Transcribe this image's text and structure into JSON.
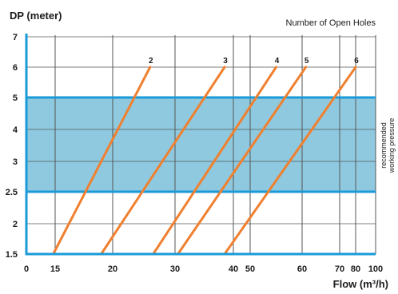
{
  "chart_data": {
    "type": "line",
    "y_title": "DP (meter)",
    "x_title": "Flow (m³/h)",
    "legend_title": "Number of Open Holes",
    "band_label_line1": "recommended",
    "band_label_line2": "working pressure",
    "y_ticks": [
      {
        "value": 1.5,
        "label": "1.5"
      },
      {
        "value": 2,
        "label": "2"
      },
      {
        "value": 2.5,
        "label": "2.5"
      },
      {
        "value": 3,
        "label": "3"
      },
      {
        "value": 4,
        "label": "4"
      },
      {
        "value": 5,
        "label": "5"
      },
      {
        "value": 6,
        "label": "6"
      },
      {
        "value": 7,
        "label": "7"
      }
    ],
    "x_ticks": [
      {
        "value": 0,
        "label": "0"
      },
      {
        "value": 15,
        "label": "15"
      },
      {
        "value": 20,
        "label": "20"
      },
      {
        "value": 30,
        "label": "30"
      },
      {
        "value": 40,
        "label": "40"
      },
      {
        "value": 50,
        "label": "50"
      },
      {
        "value": 60,
        "label": "60"
      },
      {
        "value": 70,
        "label": "70"
      },
      {
        "value": 80,
        "label": "80"
      },
      {
        "value": 100,
        "label": "100"
      }
    ],
    "band": {
      "y_from": 2.5,
      "y_to": 5,
      "color": "#8ec9df",
      "edge_color": "#1a9ad8"
    },
    "axis_color": "#1a9ad8",
    "grid_color": "#555555",
    "line_color": "#f08030",
    "series": [
      {
        "name": "2",
        "points": [
          {
            "flow": 14,
            "dp": 1.5
          },
          {
            "flow": 26,
            "dp": 6
          }
        ]
      },
      {
        "name": "3",
        "points": [
          {
            "flow": 19,
            "dp": 1.5
          },
          {
            "flow": 38.5,
            "dp": 6
          }
        ]
      },
      {
        "name": "4",
        "points": [
          {
            "flow": 26.5,
            "dp": 1.5
          },
          {
            "flow": 55,
            "dp": 6
          }
        ]
      },
      {
        "name": "5",
        "points": [
          {
            "flow": 30.5,
            "dp": 1.5
          },
          {
            "flow": 61,
            "dp": 6
          }
        ]
      },
      {
        "name": "6",
        "points": [
          {
            "flow": 38.5,
            "dp": 1.5
          },
          {
            "flow": 80,
            "dp": 6
          }
        ]
      }
    ]
  }
}
